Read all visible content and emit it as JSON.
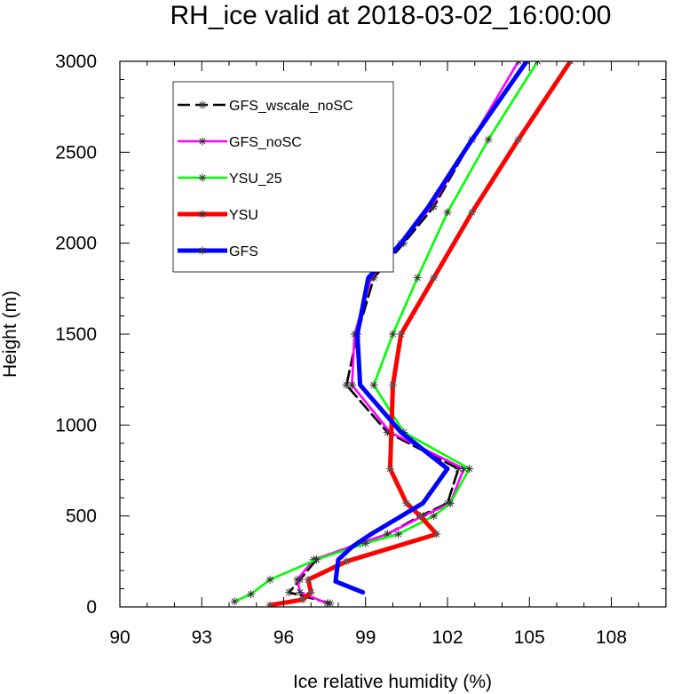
{
  "chart_data": {
    "type": "line",
    "title": "RH_ice valid at 2018-03-02_16:00:00",
    "xlabel": "Ice relative humidity (%)",
    "ylabel": "Height (m)",
    "xlim": [
      90,
      110
    ],
    "ylim": [
      0,
      3000
    ],
    "xticks": [
      90,
      93,
      96,
      99,
      102,
      105,
      108
    ],
    "yticks": [
      0,
      500,
      1000,
      1500,
      2000,
      2500,
      3000
    ],
    "grid": false,
    "legend_position": "top-left",
    "series": [
      {
        "name": "GFS_wscale_noSC",
        "color": "#000000",
        "line_style": "dashed",
        "marker": "star",
        "points": [
          [
            97.7,
            20
          ],
          [
            96.2,
            80
          ],
          [
            96.6,
            150
          ],
          [
            97.2,
            260
          ],
          [
            98.8,
            350
          ],
          [
            99.8,
            400
          ],
          [
            101.0,
            500
          ],
          [
            102.0,
            570
          ],
          [
            102.4,
            760
          ],
          [
            99.8,
            960
          ],
          [
            98.3,
            1220
          ],
          [
            98.7,
            1500
          ],
          [
            99.3,
            1810
          ],
          [
            100.4,
            2000
          ],
          [
            101.5,
            2200
          ],
          [
            102.9,
            2570
          ],
          [
            104.9,
            3000
          ]
        ]
      },
      {
        "name": "GFS_noSC",
        "color": "#ff00ff",
        "line_style": "solid",
        "marker": "star",
        "points": [
          [
            97.6,
            20
          ],
          [
            96.6,
            80
          ],
          [
            96.5,
            150
          ],
          [
            97.1,
            260
          ],
          [
            98.8,
            350
          ],
          [
            99.8,
            400
          ],
          [
            101.1,
            500
          ],
          [
            102.1,
            570
          ],
          [
            102.6,
            760
          ],
          [
            99.9,
            960
          ],
          [
            98.5,
            1220
          ],
          [
            98.6,
            1500
          ],
          [
            99.2,
            1810
          ],
          [
            100.3,
            2000
          ],
          [
            101.4,
            2200
          ],
          [
            102.9,
            2570
          ],
          [
            104.6,
            3000
          ]
        ]
      },
      {
        "name": "YSU_25",
        "color": "#00ff00",
        "line_style": "solid",
        "marker": "star",
        "points": [
          [
            94.2,
            30
          ],
          [
            94.8,
            70
          ],
          [
            95.5,
            150
          ],
          [
            97.2,
            260
          ],
          [
            99.0,
            350
          ],
          [
            100.2,
            400
          ],
          [
            101.5,
            500
          ],
          [
            102.1,
            570
          ],
          [
            102.8,
            760
          ],
          [
            100.4,
            960
          ],
          [
            99.3,
            1220
          ],
          [
            100.0,
            1500
          ],
          [
            100.9,
            1810
          ],
          [
            102.0,
            2170
          ],
          [
            103.5,
            2570
          ],
          [
            105.3,
            3000
          ]
        ]
      },
      {
        "name": "YSU",
        "color": "#ff0000",
        "line_style": "solid",
        "marker": "star",
        "points": [
          [
            95.5,
            10
          ],
          [
            96.7,
            40
          ],
          [
            97.0,
            80
          ],
          [
            96.9,
            150
          ],
          [
            98.3,
            250
          ],
          [
            101.6,
            400
          ],
          [
            101.0,
            500
          ],
          [
            100.5,
            570
          ],
          [
            99.9,
            760
          ],
          [
            100.0,
            1220
          ],
          [
            100.3,
            1500
          ],
          [
            101.5,
            1810
          ],
          [
            102.9,
            2170
          ],
          [
            104.6,
            2570
          ],
          [
            106.5,
            3000
          ]
        ]
      },
      {
        "name": "GFS",
        "color": "#0000ff",
        "line_style": "solid",
        "marker": "none",
        "points": [
          [
            98.9,
            80
          ],
          [
            97.9,
            140
          ],
          [
            98.0,
            260
          ],
          [
            98.5,
            330
          ],
          [
            99.2,
            400
          ],
          [
            101.1,
            570
          ],
          [
            102.0,
            760
          ],
          [
            100.3,
            960
          ],
          [
            98.8,
            1220
          ],
          [
            98.7,
            1500
          ],
          [
            99.1,
            1810
          ],
          [
            100.3,
            2000
          ],
          [
            101.3,
            2200
          ],
          [
            102.9,
            2570
          ],
          [
            104.9,
            3000
          ]
        ]
      }
    ]
  }
}
